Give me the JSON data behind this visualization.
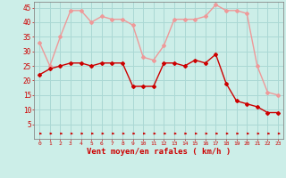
{
  "x": [
    0,
    1,
    2,
    3,
    4,
    5,
    6,
    7,
    8,
    9,
    10,
    11,
    12,
    13,
    14,
    15,
    16,
    17,
    18,
    19,
    20,
    21,
    22,
    23
  ],
  "wind_avg": [
    22,
    24,
    25,
    26,
    26,
    25,
    26,
    26,
    26,
    18,
    18,
    18,
    26,
    26,
    25,
    27,
    26,
    29,
    19,
    13,
    12,
    11,
    9,
    9
  ],
  "wind_gust": [
    33,
    25,
    35,
    44,
    44,
    40,
    42,
    41,
    41,
    39,
    28,
    27,
    32,
    41,
    41,
    41,
    42,
    46,
    44,
    44,
    43,
    25,
    16,
    15
  ],
  "bg_color": "#cceee8",
  "grid_color": "#aad8d4",
  "avg_color": "#cc0000",
  "gust_color": "#ee9999",
  "arrow_color": "#cc0000",
  "xlabel": "Vent moyen/en rafales ( km/h )",
  "xlabel_color": "#cc0000",
  "tick_color": "#cc0000",
  "ylim": [
    0,
    47
  ],
  "yticks": [
    5,
    10,
    15,
    20,
    25,
    30,
    35,
    40,
    45
  ],
  "xlim": [
    -0.5,
    23.5
  ]
}
